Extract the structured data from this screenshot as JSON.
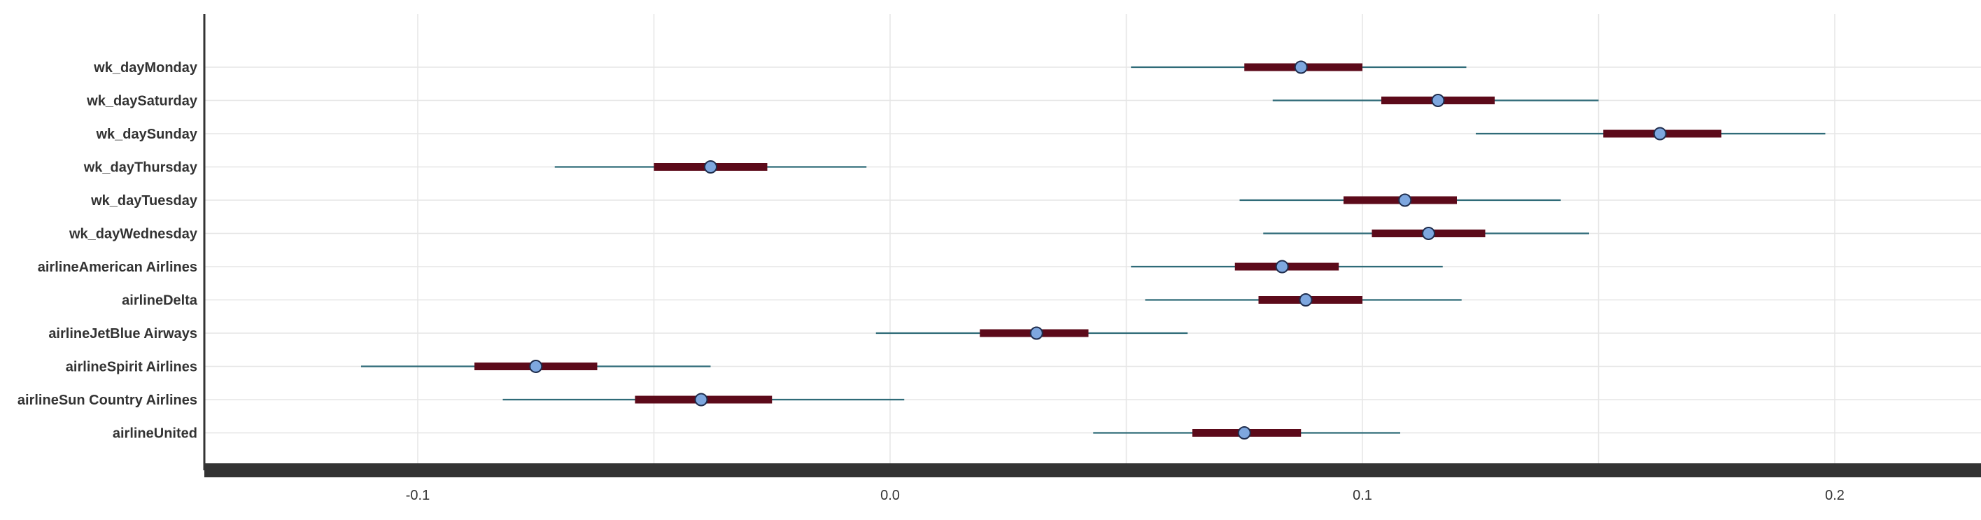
{
  "chart_data": {
    "type": "forest",
    "title": "",
    "xlabel": "",
    "ylabel": "",
    "xlim": [
      -0.15,
      0.225
    ],
    "xticks": [
      -0.1,
      0.0,
      0.1,
      0.2
    ],
    "xtick_labels": [
      "-0.1",
      "0.0",
      "0.1",
      "0.2"
    ],
    "grid": true,
    "legend": "none",
    "colors": {
      "outer_interval": "#2f6b78",
      "inner_interval": "#5c0a1a",
      "point_fill": "#7ea7df",
      "point_stroke": "#1f2d4d",
      "axis": "#333333",
      "grid": "#e6e6e6"
    },
    "rows": [
      {
        "label": "wk_dayMonday",
        "estimate": 0.087,
        "inner": [
          0.075,
          0.1
        ],
        "outer": [
          0.051,
          0.122
        ]
      },
      {
        "label": "wk_daySaturday",
        "estimate": 0.116,
        "inner": [
          0.104,
          0.128
        ],
        "outer": [
          0.081,
          0.15
        ]
      },
      {
        "label": "wk_daySunday",
        "estimate": 0.163,
        "inner": [
          0.151,
          0.176
        ],
        "outer": [
          0.124,
          0.198
        ]
      },
      {
        "label": "wk_dayThursday",
        "estimate": -0.038,
        "inner": [
          -0.05,
          -0.026
        ],
        "outer": [
          -0.071,
          -0.005
        ]
      },
      {
        "label": "wk_dayTuesday",
        "estimate": 0.109,
        "inner": [
          0.096,
          0.12
        ],
        "outer": [
          0.074,
          0.142
        ]
      },
      {
        "label": "wk_dayWednesday",
        "estimate": 0.114,
        "inner": [
          0.102,
          0.126
        ],
        "outer": [
          0.079,
          0.148
        ]
      },
      {
        "label": "airlineAmerican Airlines",
        "estimate": 0.083,
        "inner": [
          0.073,
          0.095
        ],
        "outer": [
          0.051,
          0.117
        ]
      },
      {
        "label": "airlineDelta",
        "estimate": 0.088,
        "inner": [
          0.078,
          0.1
        ],
        "outer": [
          0.054,
          0.121
        ]
      },
      {
        "label": "airlineJetBlue Airways",
        "estimate": 0.031,
        "inner": [
          0.019,
          0.042
        ],
        "outer": [
          -0.003,
          0.063
        ]
      },
      {
        "label": "airlineSpirit Airlines",
        "estimate": -0.075,
        "inner": [
          -0.088,
          -0.062
        ],
        "outer": [
          -0.112,
          -0.038
        ]
      },
      {
        "label": "airlineSun Country Airlines",
        "estimate": -0.04,
        "inner": [
          -0.054,
          -0.025
        ],
        "outer": [
          -0.082,
          0.003
        ]
      },
      {
        "label": "airlineUnited",
        "estimate": 0.075,
        "inner": [
          0.064,
          0.087
        ],
        "outer": [
          0.043,
          0.108
        ]
      }
    ]
  }
}
